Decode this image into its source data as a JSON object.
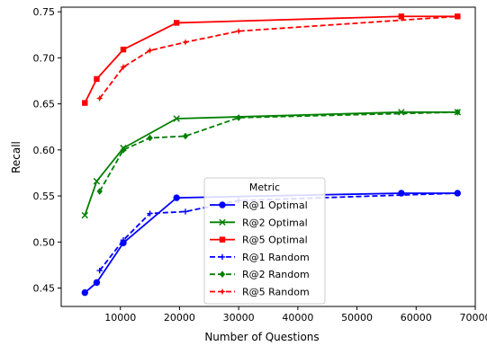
{
  "chart_data": {
    "type": "line",
    "title": "",
    "xlabel": "Number of Questions",
    "ylabel": "Recall",
    "xlim": [
      0,
      70000
    ],
    "ylim": [
      0.43,
      0.755
    ],
    "x_ticks": [
      10000,
      20000,
      30000,
      40000,
      50000,
      60000,
      70000
    ],
    "x_tick_labels": [
      "10000",
      "20000",
      "30000",
      "40000",
      "50000",
      "60000",
      "70000"
    ],
    "y_ticks": [
      0.45,
      0.5,
      0.55,
      0.6,
      0.65,
      0.7,
      0.75
    ],
    "y_tick_labels": [
      "0.45",
      "0.50",
      "0.55",
      "0.60",
      "0.65",
      "0.70",
      "0.75"
    ],
    "grid": false,
    "legend": {
      "title": "Metric",
      "placement": "lower-center"
    },
    "series": [
      {
        "name": "R@1 Optimal",
        "color": "#0000ff",
        "dash": "solid",
        "marker": "circle",
        "x": [
          4000,
          6000,
          10500,
          19500,
          57500,
          67000
        ],
        "y": [
          0.445,
          0.456,
          0.499,
          0.548,
          0.553,
          0.553
        ]
      },
      {
        "name": "R@2 Optimal",
        "color": "#008000",
        "dash": "solid",
        "marker": "x",
        "x": [
          4000,
          6000,
          10500,
          19500,
          57500,
          67000
        ],
        "y": [
          0.529,
          0.566,
          0.602,
          0.634,
          0.641,
          0.641
        ]
      },
      {
        "name": "R@5 Optimal",
        "color": "#ff0000",
        "dash": "solid",
        "marker": "square",
        "x": [
          4000,
          6000,
          10500,
          19500,
          57500,
          67000
        ],
        "y": [
          0.651,
          0.677,
          0.709,
          0.738,
          0.745,
          0.745
        ]
      },
      {
        "name": "R@1 Random",
        "color": "#0000ff",
        "dash": "dashed",
        "marker": "plus",
        "x": [
          6500,
          10500,
          15000,
          21000,
          30000,
          67000
        ],
        "y": [
          0.469,
          0.502,
          0.531,
          0.533,
          0.545,
          0.553
        ]
      },
      {
        "name": "R@2 Random",
        "color": "#008000",
        "dash": "dashed",
        "marker": "diamond",
        "x": [
          6500,
          10500,
          15000,
          21000,
          30000,
          67000
        ],
        "y": [
          0.555,
          0.6,
          0.613,
          0.615,
          0.635,
          0.641
        ]
      },
      {
        "name": "R@5 Random",
        "color": "#ff0000",
        "dash": "dashed",
        "marker": "star",
        "x": [
          6500,
          10500,
          15000,
          21000,
          30000,
          67000
        ],
        "y": [
          0.656,
          0.69,
          0.708,
          0.717,
          0.729,
          0.745
        ]
      }
    ]
  }
}
